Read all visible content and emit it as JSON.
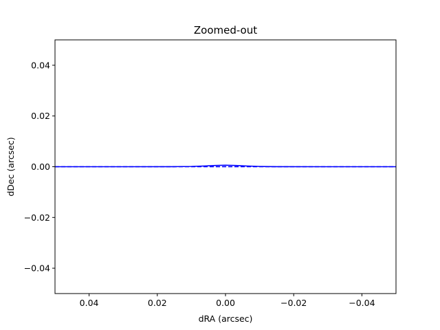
{
  "chart_data": {
    "type": "line",
    "title": "Zoomed-out",
    "xlabel": "dRA (arcsec)",
    "ylabel": "dDec (arcsec)",
    "xlim": [
      0.05,
      -0.05
    ],
    "ylim": [
      -0.05,
      0.05
    ],
    "x_axis_inverted": true,
    "grid": false,
    "xticks": [
      0.04,
      0.02,
      0.0,
      -0.02,
      -0.04
    ],
    "xtick_labels": [
      "0.04",
      "0.02",
      "0.00",
      "−0.02",
      "−0.04"
    ],
    "yticks": [
      -0.04,
      -0.02,
      0.0,
      0.02,
      0.04
    ],
    "ytick_labels": [
      "−0.04",
      "−0.02",
      "0.00",
      "0.02",
      "0.04"
    ],
    "series": [
      {
        "style": "solid",
        "color": "#0000ff",
        "x": [
          0.05,
          0.03,
          0.015,
          0.01,
          0.006,
          0.003,
          0.0,
          -0.003,
          -0.006,
          -0.01,
          -0.015,
          -0.03,
          -0.05
        ],
        "y": [
          0.0,
          0.0,
          3e-05,
          0.0001,
          0.0003,
          0.0005,
          0.0006,
          0.0005,
          0.0003,
          0.0001,
          3e-05,
          0.0,
          0.0
        ]
      },
      {
        "style": "dashed",
        "color": "#0000ff",
        "x": [
          0.05,
          0.025,
          0.0,
          -0.025,
          -0.05
        ],
        "y": [
          0.0,
          0.0,
          0.0,
          0.0,
          0.0
        ]
      }
    ]
  }
}
